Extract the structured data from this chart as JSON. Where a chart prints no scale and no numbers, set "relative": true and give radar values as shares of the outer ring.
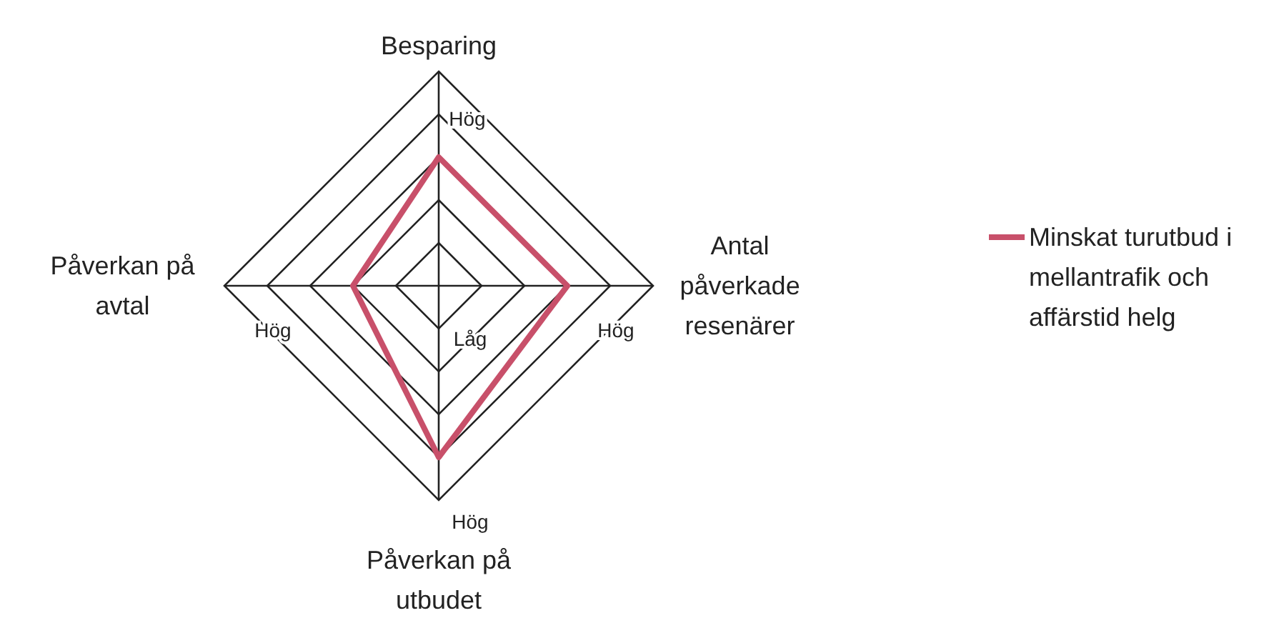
{
  "chart_data": {
    "type": "radar",
    "relative": true,
    "categories": [
      "Besparing",
      "Antal\npåverkade\nresenärer",
      "Påverkan på\nutbudet",
      "Påverkan på\navtal"
    ],
    "series": [
      {
        "name": "Minskat turutbud i\nmellantrafik och\naffärstid helg",
        "color": "#c8506a",
        "values": [
          0.6,
          0.6,
          0.8,
          0.4
        ]
      }
    ],
    "annotations": [
      "Hög",
      "Hög",
      "Hög",
      "Hög",
      "Låg"
    ],
    "legend": "right"
  }
}
